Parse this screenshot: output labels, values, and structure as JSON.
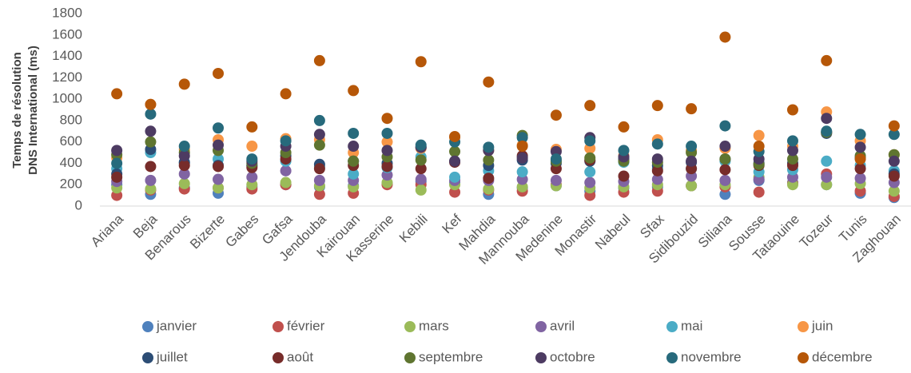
{
  "chart_data": {
    "type": "scatter",
    "y_label": [
      "Temps de résolution",
      "DNS International (ms)"
    ],
    "categories": [
      "Ariana",
      "Beja",
      "Benarous",
      "Bizerte",
      "Gabes",
      "Gafsa",
      "Jendouba",
      "Kairouan",
      "Kasserine",
      "Kebili",
      "Kef",
      "Mahdia",
      "Mannouba",
      "Medenine",
      "Monastir",
      "Nabeul",
      "Sfax",
      "Sidibouzid",
      "Siliana",
      "Sousse",
      "Tataouine",
      "Tozeur",
      "Tunis",
      "Zaghouan"
    ],
    "ylim": [
      0,
      1800
    ],
    "yticks": [
      0,
      200,
      400,
      600,
      800,
      1000,
      1200,
      1400,
      1600,
      1800
    ],
    "grid": false,
    "legend": "bottom",
    "series": [
      {
        "name": "janvier",
        "color": "#4F81BD",
        "values": [
          200,
          110,
          170,
          120,
          180,
          200,
          180,
          190,
          210,
          230,
          220,
          110,
          170,
          190,
          140,
          170,
          180,
          190,
          110,
          240,
          220,
          200,
          120,
          80
        ]
      },
      {
        "name": "février",
        "color": "#C0504D",
        "values": [
          100,
          150,
          160,
          170,
          160,
          200,
          110,
          120,
          200,
          200,
          130,
          150,
          140,
          200,
          100,
          130,
          140,
          190,
          180,
          130,
          210,
          300,
          140,
          90
        ]
      },
      {
        "name": "mars",
        "color": "#9BBB59",
        "values": [
          170,
          160,
          210,
          170,
          200,
          220,
          190,
          180,
          220,
          150,
          200,
          160,
          180,
          190,
          170,
          180,
          200,
          190,
          200,
          270,
          200,
          200,
          210,
          140
        ]
      },
      {
        "name": "avril",
        "color": "#8064A2",
        "values": [
          230,
          240,
          300,
          250,
          270,
          330,
          240,
          240,
          290,
          250,
          240,
          240,
          250,
          240,
          220,
          230,
          250,
          280,
          240,
          250,
          270,
          270,
          260,
          220
        ]
      },
      {
        "name": "mai",
        "color": "#4BACC6",
        "values": [
          350,
          500,
          400,
          440,
          380,
          420,
          370,
          300,
          360,
          460,
          270,
          330,
          320,
          420,
          320,
          410,
          350,
          350,
          420,
          320,
          340,
          420,
          380,
          330
        ]
      },
      {
        "name": "juin",
        "color": "#F79646",
        "values": [
          450,
          950,
          530,
          620,
          560,
          630,
          620,
          500,
          600,
          540,
          640,
          520,
          570,
          530,
          540,
          470,
          620,
          520,
          540,
          660,
          560,
          880,
          610,
          480
        ]
      },
      {
        "name": "juillet",
        "color": "#2C4D75",
        "values": [
          300,
          530,
          410,
          380,
          380,
          470,
          390,
          420,
          400,
          550,
          420,
          380,
          430,
          400,
          420,
          440,
          380,
          410,
          440,
          400,
          400,
          680,
          450,
          300
        ]
      },
      {
        "name": "août",
        "color": "#772C2A",
        "values": [
          270,
          370,
          380,
          370,
          360,
          440,
          350,
          380,
          370,
          350,
          410,
          260,
          470,
          350,
          430,
          280,
          330,
          350,
          340,
          380,
          380,
          690,
          350,
          280
        ]
      },
      {
        "name": "septembre",
        "color": "#5F7530",
        "values": [
          480,
          600,
          500,
          520,
          400,
          500,
          570,
          420,
          460,
          430,
          510,
          430,
          660,
          420,
          450,
          420,
          410,
          500,
          440,
          390,
          440,
          690,
          470,
          480
        ]
      },
      {
        "name": "octobre",
        "color": "#4D3B62",
        "values": [
          520,
          700,
          470,
          570,
          420,
          560,
          670,
          560,
          520,
          550,
          420,
          520,
          450,
          510,
          640,
          460,
          440,
          420,
          560,
          440,
          520,
          820,
          550,
          420
        ]
      },
      {
        "name": "novembre",
        "color": "#276A7C",
        "values": [
          400,
          860,
          560,
          730,
          440,
          610,
          800,
          680,
          680,
          570,
          600,
          550,
          640,
          440,
          610,
          520,
          580,
          560,
          750,
          510,
          610,
          700,
          670,
          670
        ]
      },
      {
        "name": "décembre",
        "color": "#B65708",
        "values": [
          1050,
          950,
          1140,
          1240,
          740,
          1050,
          1360,
          1080,
          820,
          1350,
          650,
          1160,
          560,
          850,
          940,
          740,
          940,
          910,
          1580,
          560,
          900,
          1360,
          440,
          750
        ]
      }
    ]
  }
}
